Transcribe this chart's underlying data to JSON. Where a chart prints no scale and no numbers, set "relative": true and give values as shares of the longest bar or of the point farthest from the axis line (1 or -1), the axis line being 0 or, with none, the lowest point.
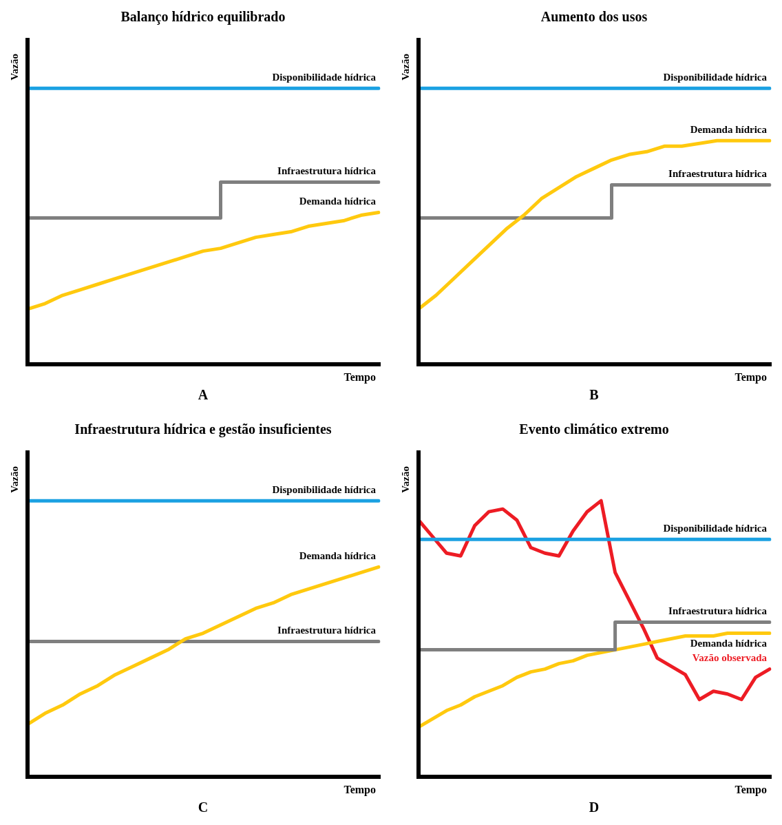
{
  "chart_data": [
    {
      "type": "line",
      "relative": true,
      "title": "Balanço hídrico equilibrado",
      "xlabel": "Tempo",
      "ylabel": "Vazão",
      "annotations": [
        "A"
      ],
      "legend": false,
      "marker": "none",
      "categories": [
        null,
        null,
        null,
        null,
        null,
        null,
        null,
        null,
        null,
        null,
        null,
        null,
        null,
        null,
        null,
        null,
        null,
        null,
        null,
        null,
        null
      ],
      "series": [
        {
          "name": "Disponibilidade hídrica",
          "color": "#1ba1e2",
          "values": [
            1,
            1,
            1,
            1,
            1,
            1,
            1,
            1,
            1,
            1,
            1,
            1,
            1,
            1,
            1,
            1,
            1,
            1,
            1,
            1,
            1
          ]
        },
        {
          "name": "Infraestrutura hídrica",
          "color": "#7f7f7f",
          "type": "step",
          "values": [
            0.53,
            0.53,
            0.53,
            0.53,
            0.53,
            0.53,
            0.53,
            0.53,
            0.53,
            0.53,
            0.53,
            0.66,
            0.66,
            0.66,
            0.66,
            0.66,
            0.66,
            0.66,
            0.66,
            0.66,
            0.66
          ]
        },
        {
          "name": "Demanda hídrica",
          "color": "#ffc90e",
          "values": [
            0.2,
            0.22,
            0.25,
            0.27,
            0.29,
            0.31,
            0.33,
            0.35,
            0.37,
            0.39,
            0.41,
            0.42,
            0.44,
            0.46,
            0.47,
            0.48,
            0.5,
            0.51,
            0.52,
            0.54,
            0.55
          ]
        }
      ]
    },
    {
      "type": "line",
      "relative": true,
      "title": "Aumento dos usos",
      "xlabel": "Tempo",
      "ylabel": "Vazão",
      "annotations": [
        "B"
      ],
      "legend": false,
      "marker": "none",
      "categories": [
        null,
        null,
        null,
        null,
        null,
        null,
        null,
        null,
        null,
        null,
        null,
        null,
        null,
        null,
        null,
        null,
        null,
        null,
        null,
        null,
        null
      ],
      "series": [
        {
          "name": "Disponibilidade hídrica",
          "color": "#1ba1e2",
          "values": [
            1,
            1,
            1,
            1,
            1,
            1,
            1,
            1,
            1,
            1,
            1,
            1,
            1,
            1,
            1,
            1,
            1,
            1,
            1,
            1,
            1
          ]
        },
        {
          "name": "Demanda hídrica",
          "color": "#ffc90e",
          "values": [
            0.2,
            0.25,
            0.31,
            0.37,
            0.43,
            0.49,
            0.54,
            0.6,
            0.64,
            0.68,
            0.71,
            0.74,
            0.76,
            0.77,
            0.79,
            0.79,
            0.8,
            0.81,
            0.81,
            0.81,
            0.81
          ]
        },
        {
          "name": "Infraestrutura hídrica",
          "color": "#7f7f7f",
          "type": "step",
          "values": [
            0.53,
            0.53,
            0.53,
            0.53,
            0.53,
            0.53,
            0.53,
            0.53,
            0.53,
            0.53,
            0.53,
            0.65,
            0.65,
            0.65,
            0.65,
            0.65,
            0.65,
            0.65,
            0.65,
            0.65,
            0.65
          ]
        }
      ]
    },
    {
      "type": "line",
      "relative": true,
      "title": "Infraestrutura hídrica e gestão insuficientes",
      "xlabel": "Tempo",
      "ylabel": "Vazão",
      "annotations": [
        "C"
      ],
      "legend": false,
      "marker": "none",
      "categories": [
        null,
        null,
        null,
        null,
        null,
        null,
        null,
        null,
        null,
        null,
        null,
        null,
        null,
        null,
        null,
        null,
        null,
        null,
        null,
        null,
        null
      ],
      "series": [
        {
          "name": "Disponibilidade hídrica",
          "color": "#1ba1e2",
          "values": [
            1,
            1,
            1,
            1,
            1,
            1,
            1,
            1,
            1,
            1,
            1,
            1,
            1,
            1,
            1,
            1,
            1,
            1,
            1,
            1,
            1
          ]
        },
        {
          "name": "Demanda hídrica",
          "color": "#ffc90e",
          "values": [
            0.19,
            0.23,
            0.26,
            0.3,
            0.33,
            0.37,
            0.4,
            0.43,
            0.46,
            0.5,
            0.52,
            0.55,
            0.58,
            0.61,
            0.63,
            0.66,
            0.68,
            0.7,
            0.72,
            0.74,
            0.76
          ]
        },
        {
          "name": "Infraestrutura hídrica",
          "color": "#7f7f7f",
          "values": [
            0.49,
            0.49,
            0.49,
            0.49,
            0.49,
            0.49,
            0.49,
            0.49,
            0.49,
            0.49,
            0.49,
            0.49,
            0.49,
            0.49,
            0.49,
            0.49,
            0.49,
            0.49,
            0.49,
            0.49,
            0.49
          ]
        }
      ]
    },
    {
      "type": "line",
      "relative": true,
      "title": "Evento climático extremo",
      "xlabel": "Tempo",
      "ylabel": "Vazão",
      "annotations": [
        "D"
      ],
      "legend": false,
      "marker": "none",
      "categories": [
        null,
        null,
        null,
        null,
        null,
        null,
        null,
        null,
        null,
        null,
        null,
        null,
        null,
        null,
        null,
        null,
        null,
        null,
        null,
        null,
        null,
        null,
        null,
        null,
        null,
        null
      ],
      "series": [
        {
          "name": "Disponibilidade hídrica",
          "color": "#1ba1e2",
          "values": [
            0.86,
            0.86,
            0.86,
            0.86,
            0.86,
            0.86,
            0.86,
            0.86,
            0.86,
            0.86,
            0.86,
            0.86,
            0.86,
            0.86,
            0.86,
            0.86,
            0.86,
            0.86,
            0.86,
            0.86,
            0.86,
            0.86,
            0.86,
            0.86,
            0.86,
            0.86
          ]
        },
        {
          "name": "Infraestrutura hídrica",
          "color": "#7f7f7f",
          "type": "step",
          "values": [
            0.46,
            0.46,
            0.46,
            0.46,
            0.46,
            0.46,
            0.46,
            0.46,
            0.46,
            0.46,
            0.46,
            0.46,
            0.46,
            0.46,
            0.56,
            0.56,
            0.56,
            0.56,
            0.56,
            0.56,
            0.56,
            0.56,
            0.56,
            0.56,
            0.56,
            0.56
          ]
        },
        {
          "name": "Demanda hídrica",
          "color": "#ffc90e",
          "values": [
            0.18,
            0.21,
            0.24,
            0.26,
            0.29,
            0.31,
            0.33,
            0.36,
            0.38,
            0.39,
            0.41,
            0.42,
            0.44,
            0.45,
            0.46,
            0.47,
            0.48,
            0.49,
            0.5,
            0.51,
            0.51,
            0.51,
            0.52,
            0.52,
            0.52,
            0.52
          ]
        },
        {
          "name": "Vazão observada",
          "color": "#ed1c24",
          "values": [
            0.93,
            0.87,
            0.81,
            0.8,
            0.91,
            0.96,
            0.97,
            0.93,
            0.83,
            0.81,
            0.8,
            0.89,
            0.96,
            1,
            0.74,
            0.64,
            0.54,
            0.43,
            0.4,
            0.37,
            0.28,
            0.31,
            0.3,
            0.28,
            0.36,
            0.39
          ]
        }
      ]
    }
  ]
}
